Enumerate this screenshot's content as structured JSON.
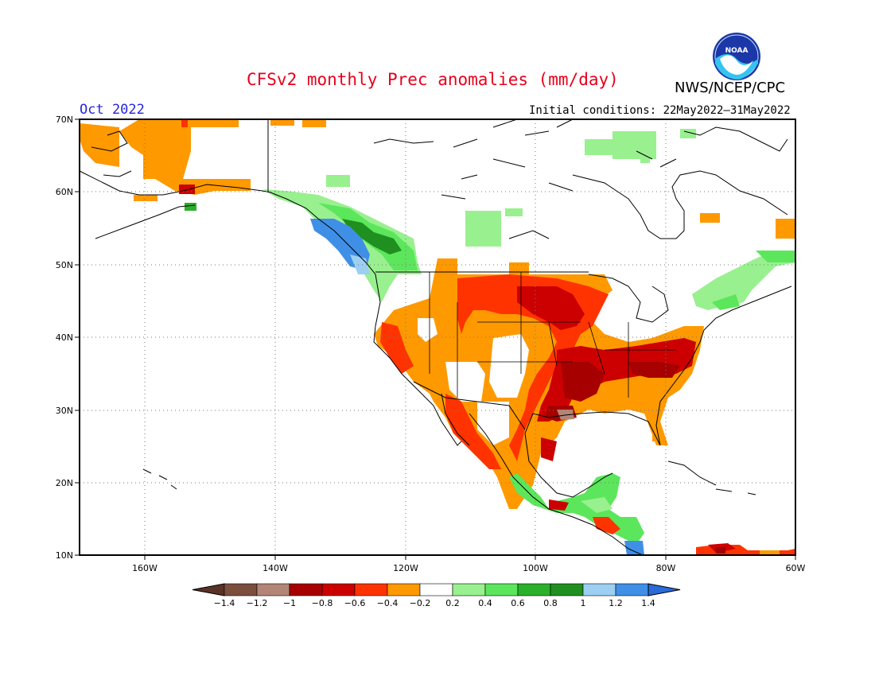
{
  "header": {
    "title": "CFSv2 monthly Prec anomalies (mm/day)",
    "month": "Oct 2022",
    "initial_conditions": "Initial conditions: 22May2022–31May2022",
    "organization": "NWS/NCEP/CPC",
    "logo_text": "NOAA"
  },
  "map": {
    "lon_range": [
      -170,
      -60
    ],
    "lat_range": [
      10,
      70
    ],
    "lat_ticks": [
      "70N",
      "60N",
      "50N",
      "40N",
      "30N",
      "20N",
      "10N"
    ],
    "lon_ticks": [
      "160W",
      "140W",
      "120W",
      "100W",
      "80W",
      "60W"
    ],
    "anomaly_regions": [
      {
        "name": "alaska-west",
        "value": -0.3,
        "color": "#ff9900"
      },
      {
        "name": "pacific-northwest-coast",
        "value": 1.3,
        "color": "#3f8fe6"
      },
      {
        "name": "british-columbia",
        "value": 0.6,
        "color": "#2bcc40"
      },
      {
        "name": "central-us",
        "value": -0.6,
        "color": "#ff3300"
      },
      {
        "name": "southeast-us",
        "value": -0.9,
        "color": "#c00000"
      },
      {
        "name": "texas-gulf",
        "value": -1.1,
        "color": "#b88b82"
      },
      {
        "name": "eastern-canada",
        "value": 0.3,
        "color": "#99f08f"
      },
      {
        "name": "central-america",
        "value": 0.5,
        "color": "#5ce65c"
      }
    ]
  },
  "colorbar": {
    "labels": [
      "−1.4",
      "−1.2",
      "−1",
      "−0.8",
      "−0.6",
      "−0.4",
      "−0.2",
      "0.2",
      "0.4",
      "0.6",
      "0.8",
      "1",
      "1.2",
      "1.4"
    ],
    "colors": [
      "#7a4f3d",
      "#b38577",
      "#a60000",
      "#cc0000",
      "#ff3300",
      "#ff9900",
      "#ffffff",
      "#99f08f",
      "#5ce65c",
      "#2bb02b",
      "#1f8f1f",
      "#9ccff2",
      "#3f8fe6"
    ],
    "low_arrow_color": "#5a3326",
    "high_arrow_color": "#2a6ad9"
  }
}
